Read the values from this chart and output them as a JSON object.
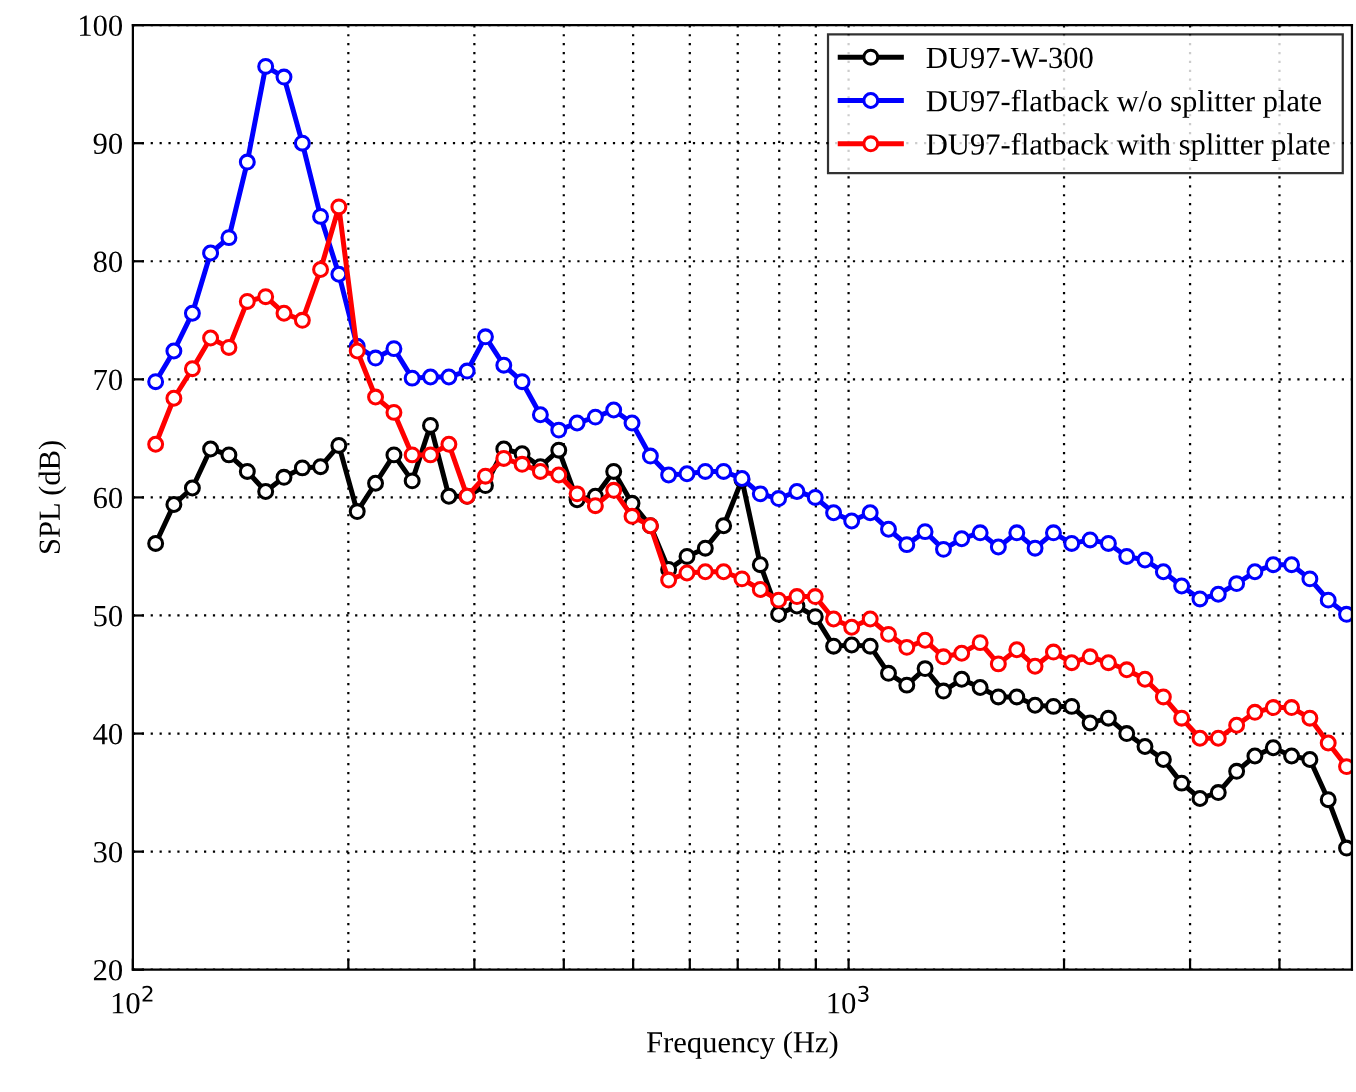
{
  "chart_data": {
    "type": "line",
    "xlabel": "Frequency (Hz)",
    "ylabel": "SPL (dB)",
    "log": "x",
    "grid": true,
    "legend": "top right",
    "marker": "circle",
    "line_style": "solid",
    "x": [
      107.6,
      114.1,
      121.1,
      128.4,
      136.2,
      144.5,
      153.3,
      162.6,
      172.5,
      182.9,
      194.0,
      205.8,
      218.3,
      231.6,
      245.6,
      260.5,
      276.4,
      293.1,
      310.9,
      329.8,
      349.8,
      371.0,
      393.6,
      417.5,
      442.8,
      469.7,
      498.2,
      528.5,
      560.5,
      594.6,
      630.7,
      669.0,
      709.6,
      752.7,
      798.4,
      846.9,
      898.3,
      952.9,
      1010,
      1072,
      1137,
      1206,
      1279,
      1357,
      1439,
      1527,
      1619,
      1718,
      1822,
      1933,
      2050,
      2175,
      2307,
      2447,
      2595,
      2753,
      2920,
      3097,
      3285,
      3485,
      3696,
      3921,
      4159,
      4411,
      4679,
      4963
    ],
    "series": [
      {
        "name": "DU97-W-300",
        "color": "#000000",
        "values": [
          56.1,
          59.4,
          60.8,
          64.1,
          63.6,
          62.2,
          60.5,
          61.7,
          62.5,
          62.6,
          64.4,
          58.8,
          61.2,
          63.6,
          61.4,
          66.1,
          60.1,
          60.1,
          61.0,
          64.1,
          63.7,
          62.6,
          64.0,
          59.8,
          60.1,
          62.2,
          59.5,
          57.6,
          53.9,
          55.0,
          55.7,
          57.6,
          61.5,
          54.3,
          50.1,
          50.8,
          49.9,
          47.4,
          47.5,
          47.4,
          45.1,
          44.1,
          45.5,
          43.6,
          44.6,
          43.9,
          43.1,
          43.1,
          42.4,
          42.3,
          42.3,
          40.9,
          41.3,
          40.0,
          38.9,
          37.8,
          35.8,
          34.5,
          35.0,
          36.8,
          38.1,
          38.8,
          38.1,
          37.8,
          34.4,
          30.3
        ]
      },
      {
        "name": "DU97-flatback w/o splitter plate",
        "color": "#0000ff",
        "values": [
          69.8,
          72.4,
          75.6,
          80.7,
          82.0,
          88.4,
          96.5,
          95.6,
          90.0,
          83.8,
          78.9,
          72.8,
          71.8,
          72.6,
          70.1,
          70.2,
          70.2,
          70.7,
          73.6,
          71.2,
          69.8,
          67.0,
          65.7,
          66.3,
          66.8,
          67.4,
          66.3,
          63.5,
          61.9,
          62.0,
          62.2,
          62.2,
          61.6,
          60.3,
          59.9,
          60.5,
          60.0,
          58.7,
          58.0,
          58.7,
          57.3,
          56.0,
          57.1,
          55.6,
          56.5,
          57.0,
          55.8,
          57.0,
          55.7,
          57.0,
          56.1,
          56.4,
          56.1,
          55.0,
          54.7,
          53.7,
          52.5,
          51.4,
          51.8,
          52.7,
          53.7,
          54.3,
          54.3,
          53.1,
          51.3,
          50.1
        ]
      },
      {
        "name": "DU97-flatback with splitter plate",
        "color": "#ff0000",
        "values": [
          64.5,
          68.4,
          70.9,
          73.5,
          72.7,
          76.6,
          77.0,
          75.6,
          75.0,
          79.3,
          84.6,
          72.4,
          68.5,
          67.2,
          63.6,
          63.6,
          64.5,
          60.1,
          61.8,
          63.3,
          62.8,
          62.2,
          61.9,
          60.3,
          59.3,
          60.6,
          58.4,
          57.6,
          53.0,
          53.6,
          53.7,
          53.7,
          53.1,
          52.2,
          51.3,
          51.6,
          51.6,
          49.7,
          49.0,
          49.7,
          48.4,
          47.3,
          47.9,
          46.5,
          46.8,
          47.7,
          45.9,
          47.1,
          45.7,
          46.9,
          46.0,
          46.5,
          46.0,
          45.4,
          44.6,
          43.1,
          41.3,
          39.6,
          39.6,
          40.7,
          41.8,
          42.2,
          42.2,
          41.3,
          39.2,
          37.2
        ]
      }
    ],
    "xlim": [
      100,
      5050
    ],
    "xticks": [
      {
        "value": 100,
        "label": "10$^{2}$"
      },
      {
        "value": 200,
        "label": null
      },
      {
        "value": 300,
        "label": null
      },
      {
        "value": 400,
        "label": null
      },
      {
        "value": 500,
        "label": null
      },
      {
        "value": 600,
        "label": null
      },
      {
        "value": 700,
        "label": null
      },
      {
        "value": 800,
        "label": null
      },
      {
        "value": 900,
        "label": null
      },
      {
        "value": 1000,
        "label": "10$^{3}$"
      },
      {
        "value": 2000,
        "label": null
      },
      {
        "value": 3000,
        "label": null
      },
      {
        "value": 4000,
        "label": null
      }
    ],
    "ylim": [
      20,
      100
    ],
    "yticks": [
      20,
      30,
      40,
      50,
      60,
      70,
      80,
      90,
      100
    ]
  }
}
